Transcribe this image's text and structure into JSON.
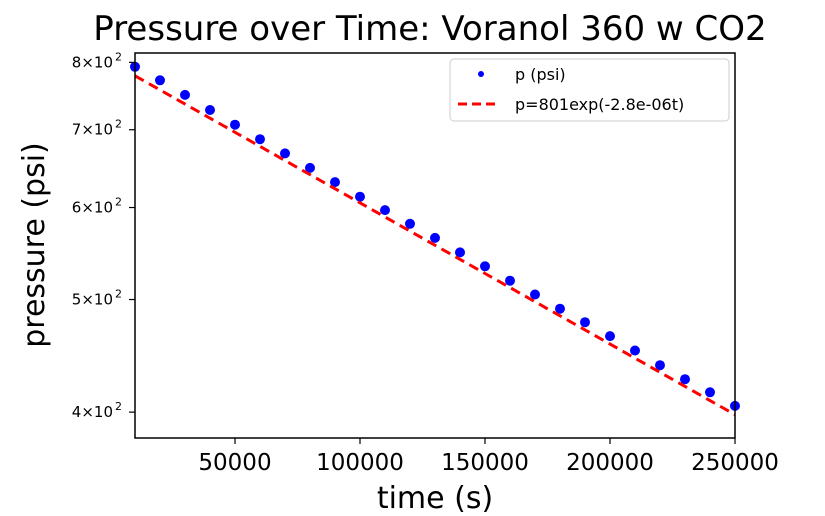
{
  "chart_data": {
    "type": "scatter",
    "title": "Pressure over Time: Voranol 360 w CO2",
    "xlabel": "time (s)",
    "ylabel": "pressure (psi)",
    "xlim": [
      10000,
      250000
    ],
    "ylim": [
      380,
      815
    ],
    "yscale": "log",
    "grid": false,
    "legend_position": "top-right",
    "x_ticks": [
      {
        "value": 50000,
        "label": "50000"
      },
      {
        "value": 100000,
        "label": "100000"
      },
      {
        "value": 150000,
        "label": "150000"
      },
      {
        "value": 200000,
        "label": "200000"
      },
      {
        "value": 250000,
        "label": "250000"
      }
    ],
    "y_ticks": [
      {
        "value": 400,
        "label": "4×10",
        "exp": "2"
      },
      {
        "value": 500,
        "label": "5×10",
        "exp": "2"
      },
      {
        "value": 600,
        "label": "6×10",
        "exp": "2"
      },
      {
        "value": 700,
        "label": "7×10",
        "exp": "2"
      },
      {
        "value": 800,
        "label": "8×10",
        "exp": "2"
      }
    ],
    "series": [
      {
        "name": "p (psi)",
        "kind": "scatter",
        "color": "#0000ff",
        "x": [
          10000,
          20000,
          30000,
          40000,
          50000,
          60000,
          70000,
          80000,
          90000,
          100000,
          110000,
          120000,
          130000,
          140000,
          150000,
          160000,
          170000,
          180000,
          190000,
          200000,
          210000,
          220000,
          230000,
          240000,
          250000
        ],
        "y": [
          793,
          772,
          750,
          728,
          707,
          687,
          668,
          649,
          631,
          613,
          597,
          581,
          565,
          549,
          534,
          519,
          505,
          491,
          478,
          465,
          452,
          439,
          427,
          416,
          405
        ]
      },
      {
        "name": "p=801exp(-2.8e-06t)",
        "kind": "line",
        "style": "dashed",
        "color": "#ff0000",
        "x": [
          10000,
          250000
        ],
        "y": [
          779,
          398
        ]
      }
    ]
  }
}
